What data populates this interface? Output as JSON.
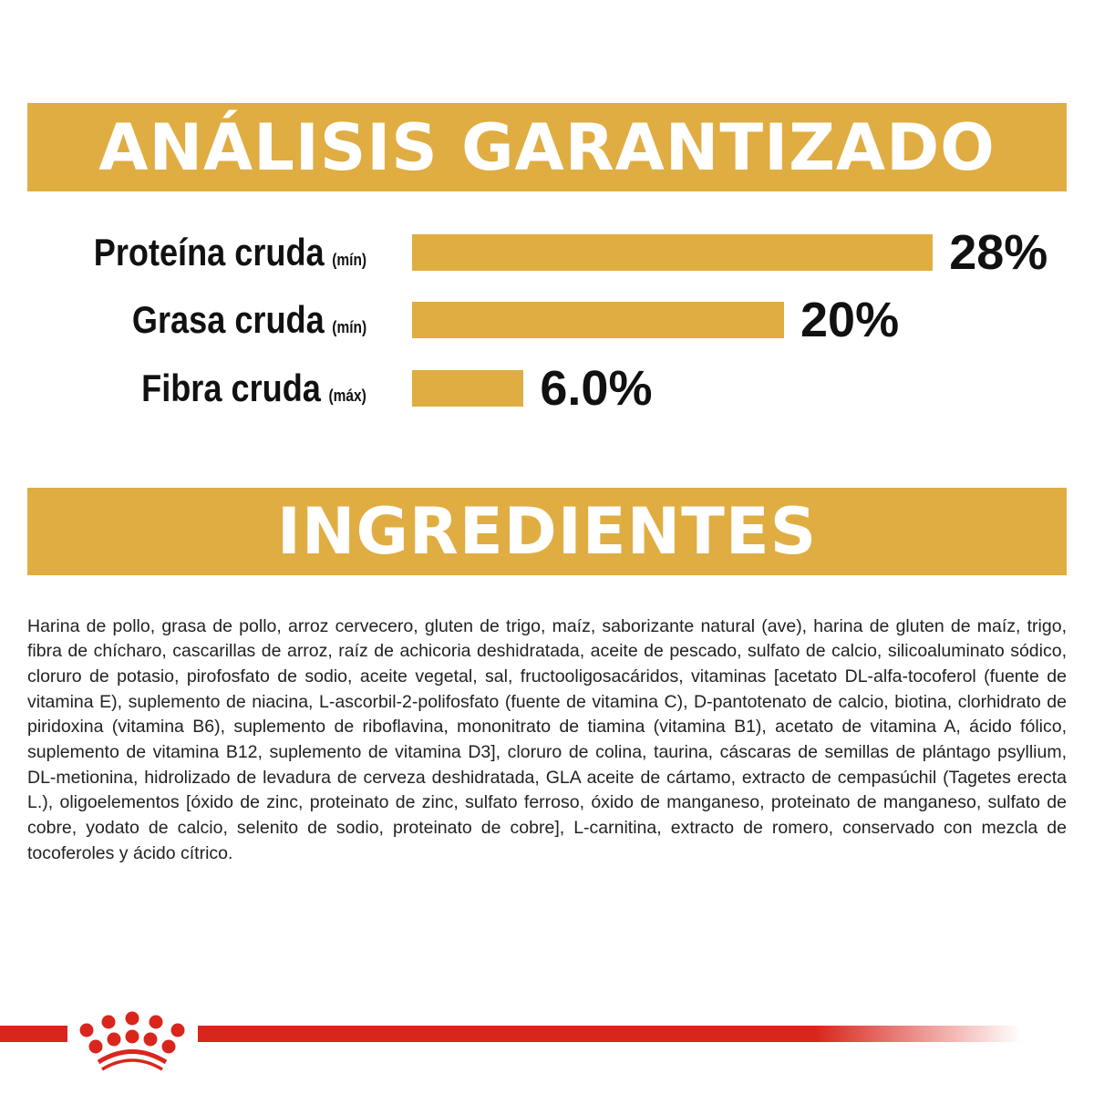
{
  "analysis": {
    "title": "ANÁLISIS GARANTIZADO",
    "accent_color": "#e0ad43",
    "items": [
      {
        "label": "Proteína cruda",
        "qualifier": "(mín)",
        "value": 28,
        "display": "28%"
      },
      {
        "label": "Grasa cruda",
        "qualifier": "(mín)",
        "value": 20,
        "display": "20%"
      },
      {
        "label": "Fibra cruda",
        "qualifier": "(máx)",
        "value": 6.0,
        "display": "6.0%"
      }
    ]
  },
  "ingredients": {
    "title": "INGREDIENTES",
    "text": "Harina de pollo, grasa de pollo, arroz cervecero, gluten de trigo, maíz, saborizante natural (ave), harina de gluten de maíz, trigo, fibra de chícharo, cascarillas de arroz, raíz de achicoria deshidratada, aceite de pescado, sulfato de calcio, silicoaluminato sódico, cloruro de potasio, pirofosfato de sodio, aceite vegetal, sal, fructooligosacáridos, vitaminas [acetato DL-alfa-tocoferol (fuente de vitamina E), suplemento de niacina, L-ascorbil-2-polifosfato (fuente de vitamina C), D-pantotenato de calcio, biotina, clorhidrato de piridoxina (vitamina B6), suplemento de riboflavina, mononitrato de tiamina (vitamina B1), acetato de vitamina A, ácido fólico, suplemento de vitamina B12, suplemento de vitamina D3], cloruro de colina, taurina, cáscaras de semillas de plántago psyllium, DL-metionina, hidrolizado de levadura de cerveza deshidratada, GLA aceite de cártamo, extracto de cempasúchil (Tagetes erecta L.), oligoelementos [óxido de zinc, proteinato de zinc, sulfato ferroso, óxido de manganeso, proteinato de manganeso, sulfato de cobre, yodato de calcio, selenito de sodio, proteinato de cobre], L-carnitina, extracto de romero, conservado con mezcla de tocoferoles y ácido cítrico."
  },
  "footer": {
    "logo": "royal-canin-crown-icon",
    "brand_color": "#d9261c"
  }
}
